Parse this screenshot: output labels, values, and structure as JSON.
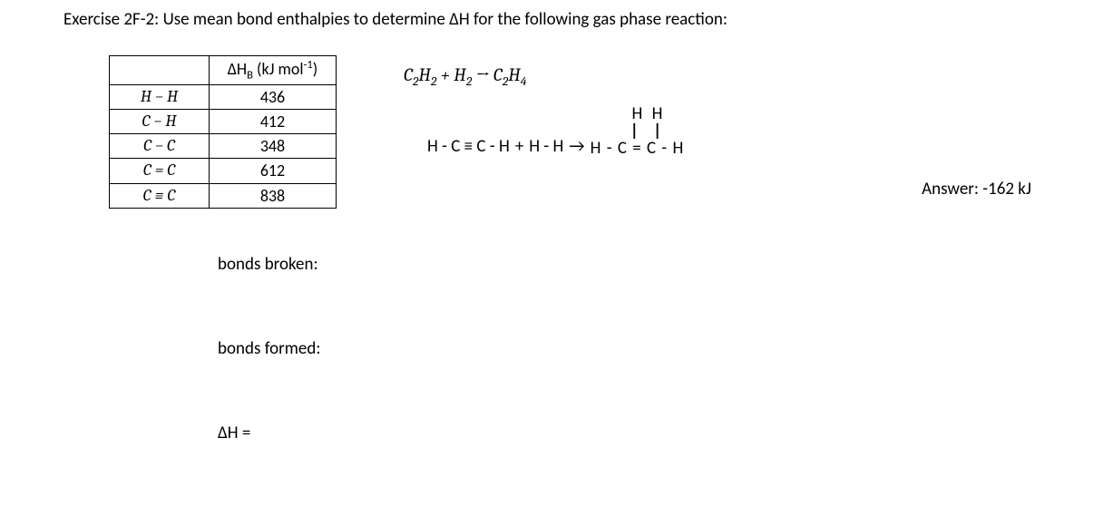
{
  "title": "Exercise 2F-2:  Use mean bond enthalpies to determine ΔH for the following gas phase reaction:",
  "table": {
    "header_bond": "",
    "header_enthalpy_html": "ΔH<span class='sub'>B</span> (kJ mol<span class='sup'>-1</span>)",
    "rows": [
      {
        "bond": "H − H",
        "value": "436"
      },
      {
        "bond": "C − H",
        "value": "412"
      },
      {
        "bond": "C − C",
        "value": "348"
      },
      {
        "bond": "C = C",
        "value": "612"
      },
      {
        "bond": "C ≡ C",
        "value": "838"
      }
    ]
  },
  "equation_html": "C<span class='sub'>2</span>H<span class='sub'>2</span> + H<span class='sub'>2</span> → C<span class='sub'>2</span>H<span class='sub'>4</span>",
  "structural_reactant1": "H - C ≡ C - H",
  "structural_plus": "  +  ",
  "structural_reactant2": "H - H",
  "structural_arrow": "  →",
  "structural_product_line1": "H  H",
  "structural_product_line2": "|  |",
  "structural_product_line3": "H - C = C - H",
  "answer_label": "Answer:  -162 kJ",
  "bonds_broken_label": "bonds broken:",
  "bonds_formed_label": "bonds formed:",
  "delta_h_label": "ΔH ="
}
